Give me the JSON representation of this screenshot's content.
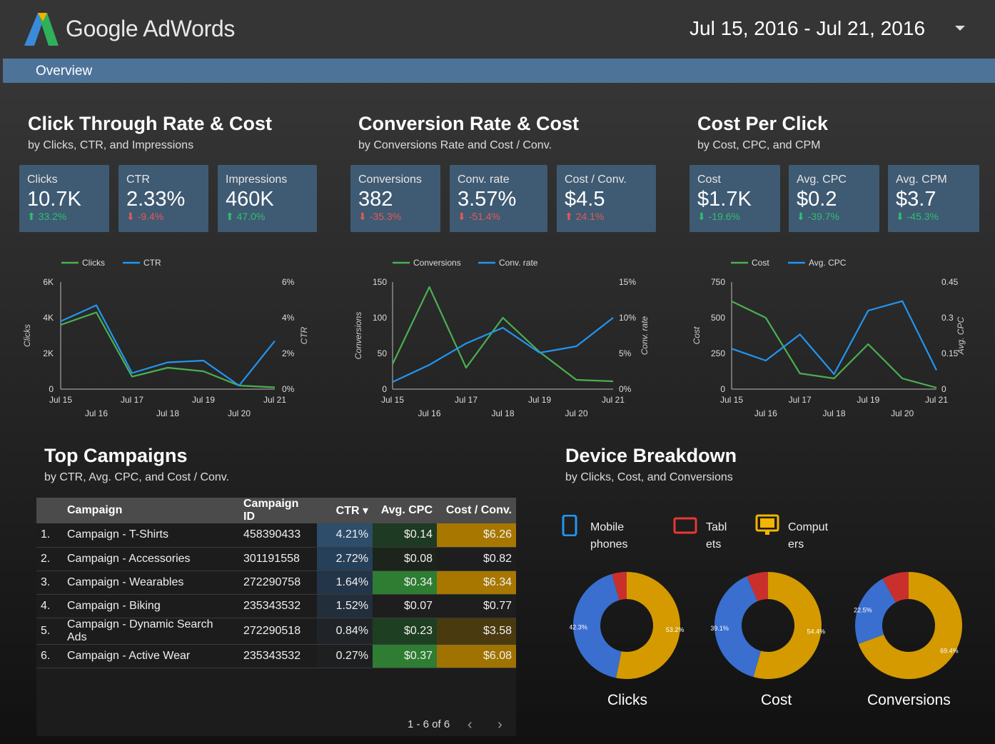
{
  "header": {
    "brand": "Google AdWords",
    "date_range": "Jul 15, 2016 - Jul 21, 2016"
  },
  "nav": {
    "tab": "Overview"
  },
  "colors": {
    "green": "#4caf50",
    "blue": "#2196f3",
    "card": "#3f5a73",
    "donut_blue": "#3a6fd0",
    "donut_gold": "#d49a00",
    "donut_red": "#c9302c"
  },
  "sections": {
    "ctr": {
      "title": "Click Through Rate & Cost",
      "subtitle": "by Clicks, CTR, and Impressions"
    },
    "conv": {
      "title": "Conversion Rate & Cost",
      "subtitle": "by Conversions Rate and Cost / Conv."
    },
    "cpc": {
      "title": "Cost Per Click",
      "subtitle": "by Cost, CPC, and CPM"
    },
    "campaigns": {
      "title": "Top Campaigns",
      "subtitle": "by CTR, Avg. CPC, and Cost / Conv."
    },
    "devices": {
      "title": "Device Breakdown",
      "subtitle": "by Clicks, Cost, and Conversions"
    }
  },
  "cards": [
    {
      "label": "Clicks",
      "value": "10.7K",
      "delta": "33.2%",
      "arrow": "⬆",
      "dir": "up"
    },
    {
      "label": "CTR",
      "value": "2.33%",
      "delta": "-9.4%",
      "arrow": "⬇",
      "dir": "down"
    },
    {
      "label": "Impressions",
      "value": "460K",
      "delta": "47.0%",
      "arrow": "⬆",
      "dir": "up"
    },
    {
      "label": "Conversions",
      "value": "382",
      "delta": "-35.3%",
      "arrow": "⬇",
      "dir": "down"
    },
    {
      "label": "Conv. rate",
      "value": "3.57%",
      "delta": "-51.4%",
      "arrow": "⬇",
      "dir": "down"
    },
    {
      "label": "Cost / Conv.",
      "value": "$4.5",
      "delta": "24.1%",
      "arrow": "⬆",
      "dir": "down"
    },
    {
      "label": "Cost",
      "value": "$1.7K",
      "delta": "-19.6%",
      "arrow": "⬇",
      "dir": "up"
    },
    {
      "label": "Avg. CPC",
      "value": "$0.2",
      "delta": "-39.7%",
      "arrow": "⬇",
      "dir": "up"
    },
    {
      "label": "Avg. CPM",
      "value": "$3.7",
      "delta": "-45.3%",
      "arrow": "⬇",
      "dir": "up"
    }
  ],
  "chart_data": [
    {
      "type": "line",
      "x_ticks_top": [
        "Jul 15",
        "Jul 17",
        "Jul 19",
        "Jul 21"
      ],
      "x_ticks_bottom": [
        "Jul 16",
        "Jul 18",
        "Jul 20"
      ],
      "series": [
        {
          "name": "Clicks",
          "axis": "left",
          "color": "#4caf50",
          "values": [
            3600,
            4300,
            700,
            1200,
            1000,
            200,
            100
          ]
        },
        {
          "name": "CTR",
          "axis": "right",
          "color": "#2196f3",
          "values": [
            3.8,
            4.7,
            0.9,
            1.5,
            1.6,
            0.2,
            2.7
          ]
        }
      ],
      "left_axis": {
        "label": "Clicks",
        "ticks": [
          "0",
          "2K",
          "4K",
          "6K"
        ],
        "max": 6000
      },
      "right_axis": {
        "label": "CTR",
        "ticks": [
          "0%",
          "2%",
          "4%",
          "6%"
        ],
        "max": 6
      }
    },
    {
      "type": "line",
      "x_ticks_top": [
        "Jul 15",
        "Jul 17",
        "Jul 19",
        "Jul 21"
      ],
      "x_ticks_bottom": [
        "Jul 16",
        "Jul 18",
        "Jul 20"
      ],
      "series": [
        {
          "name": "Conversions",
          "axis": "left",
          "color": "#4caf50",
          "values": [
            35,
            143,
            30,
            100,
            52,
            13,
            11
          ]
        },
        {
          "name": "Conv. rate",
          "axis": "right",
          "color": "#2196f3",
          "values": [
            1.0,
            3.4,
            6.4,
            8.6,
            5.1,
            6.0,
            10.0
          ]
        }
      ],
      "left_axis": {
        "label": "Conversions",
        "ticks": [
          "0",
          "50",
          "100",
          "150"
        ],
        "max": 150
      },
      "right_axis": {
        "label": "Conv. rate",
        "ticks": [
          "0%",
          "5%",
          "10%",
          "15%"
        ],
        "max": 15
      }
    },
    {
      "type": "line",
      "x_ticks_top": [
        "Jul 15",
        "Jul 17",
        "Jul 19",
        "Jul 21"
      ],
      "x_ticks_bottom": [
        "Jul 16",
        "Jul 18",
        "Jul 20"
      ],
      "series": [
        {
          "name": "Cost",
          "axis": "left",
          "color": "#4caf50",
          "values": [
            615,
            500,
            110,
            75,
            315,
            75,
            10
          ]
        },
        {
          "name": "Avg. CPC",
          "axis": "right",
          "color": "#2196f3",
          "values": [
            0.17,
            0.12,
            0.23,
            0.063,
            0.33,
            0.37,
            0.08
          ]
        }
      ],
      "left_axis": {
        "label": "Cost",
        "ticks": [
          "0",
          "250",
          "500",
          "750"
        ],
        "max": 750
      },
      "right_axis": {
        "label": "Avg. CPC",
        "ticks": [
          "0",
          "0.15",
          "0.3",
          "0.45"
        ],
        "max": 0.45
      }
    },
    {
      "type": "pie",
      "title": "Clicks",
      "slices": [
        {
          "name": "Mobile phones",
          "value": 42.3
        },
        {
          "name": "Computers",
          "value": 53.2
        },
        {
          "name": "Tablets",
          "value": 4.5
        }
      ],
      "labels": [
        "42.3%",
        "53.2%"
      ]
    },
    {
      "type": "pie",
      "title": "Cost",
      "slices": [
        {
          "name": "Mobile phones",
          "value": 39.1
        },
        {
          "name": "Computers",
          "value": 54.4
        },
        {
          "name": "Tablets",
          "value": 6.5
        }
      ],
      "labels": [
        "39.1%",
        "54.4%"
      ]
    },
    {
      "type": "pie",
      "title": "Conversions",
      "slices": [
        {
          "name": "Mobile phones",
          "value": 22.5
        },
        {
          "name": "Computers",
          "value": 69.4
        },
        {
          "name": "Tablets",
          "value": 8.1
        }
      ],
      "labels": [
        "22.5%",
        "69.4%"
      ]
    }
  ],
  "table": {
    "headers": [
      "Campaign",
      "Campaign ID",
      "CTR ▾",
      "Avg. CPC",
      "Cost / Conv."
    ],
    "rows": [
      {
        "n": "1.",
        "name": "Campaign - T-Shirts",
        "id": "458390433",
        "ctr": "4.21%",
        "cpc": "$0.14",
        "cost": "$6.26",
        "ctr_bg": "#2d4d6b",
        "cpc_bg": "#1e3a22",
        "cost_bg": "#a77700"
      },
      {
        "n": "2.",
        "name": "Campaign - Accessories",
        "id": "301191558",
        "ctr": "2.72%",
        "cpc": "$0.08",
        "cost": "$0.82",
        "ctr_bg": "#27405a",
        "cpc_bg": "#1c241c",
        "cost_bg": "#1e1e1e"
      },
      {
        "n": "3.",
        "name": "Campaign - Wearables",
        "id": "272290758",
        "ctr": "1.64%",
        "cpc": "$0.34",
        "cost": "$6.34",
        "ctr_bg": "#233548",
        "cpc_bg": "#2e7d32",
        "cost_bg": "#a77700"
      },
      {
        "n": "4.",
        "name": "Campaign - Biking",
        "id": "235343532",
        "ctr": "1.52%",
        "cpc": "$0.07",
        "cost": "$0.77",
        "ctr_bg": "#222e3a",
        "cpc_bg": "#1e1e1e",
        "cost_bg": "#1e1e1e"
      },
      {
        "n": "5.",
        "name": "Campaign - Dynamic Search Ads",
        "id": "272290518",
        "ctr": "0.84%",
        "cpc": "$0.23",
        "cost": "$3.58",
        "ctr_bg": "#202428",
        "cpc_bg": "#1e3f21",
        "cost_bg": "#4a3a0f"
      },
      {
        "n": "6.",
        "name": "Campaign - Active Wear",
        "id": "235343532",
        "ctr": "0.27%",
        "cpc": "$0.37",
        "cost": "$6.08",
        "ctr_bg": "#1e1f21",
        "cpc_bg": "#2e7d32",
        "cost_bg": "#a07200"
      }
    ],
    "pager": "1 - 6 of 6",
    "prev": "‹",
    "next": "›"
  },
  "devices_legend": [
    {
      "icon": "phone-icon",
      "line1": "Mobile",
      "line2": "phones",
      "color": "#2196f3"
    },
    {
      "icon": "tablet-icon",
      "line1": "Tabl",
      "line2": "ets",
      "color": "#e53935"
    },
    {
      "icon": "computer-icon",
      "line1": "Comput",
      "line2": "ers",
      "color": "#f4b400"
    }
  ]
}
